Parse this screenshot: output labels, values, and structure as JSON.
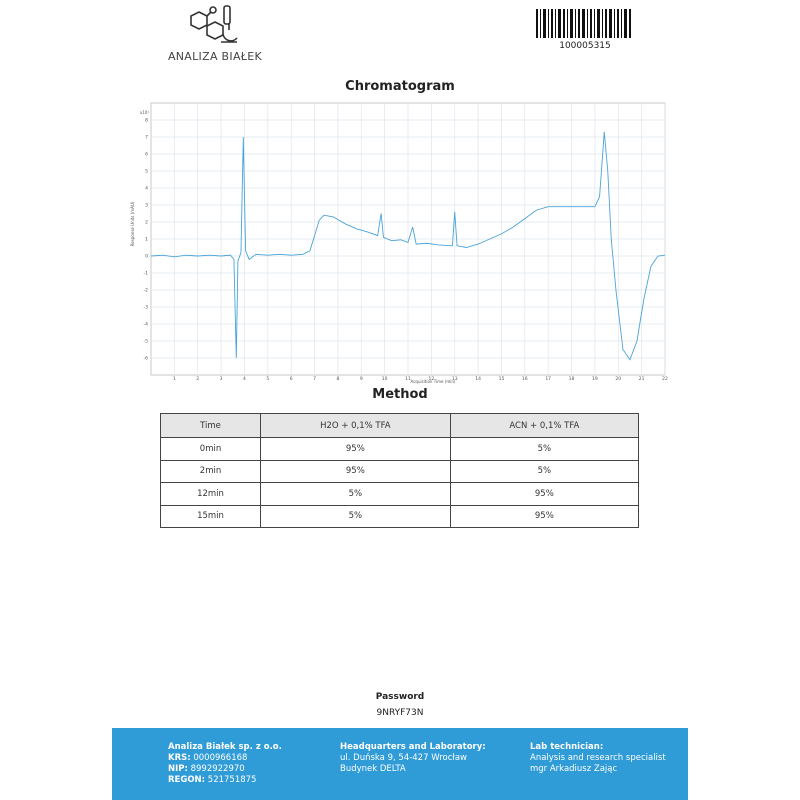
{
  "header": {
    "brand": "ANALIZA BIAŁEK",
    "barcode": "100005315"
  },
  "chart_data": {
    "type": "line",
    "title": "Chromatogram",
    "x_label": "Acquisition Time (min)",
    "y_label": "Response Units (mAU)",
    "y_scale_label": "x10¹",
    "x": [
      0,
      0.5,
      1,
      1.5,
      2,
      2.5,
      3,
      3.4,
      3.55,
      3.65,
      3.72,
      3.85,
      3.95,
      4.05,
      4.2,
      4.5,
      5,
      5.5,
      6,
      6.5,
      6.8,
      7.0,
      7.2,
      7.4,
      7.8,
      8.3,
      8.8,
      9.3,
      9.7,
      9.85,
      9.95,
      10.3,
      10.7,
      11.0,
      11.2,
      11.35,
      11.8,
      12.3,
      12.9,
      13.0,
      13.1,
      13.5,
      14,
      14.5,
      15,
      15.5,
      16,
      16.5,
      17,
      18,
      19,
      19.2,
      19.4,
      19.55,
      19.7,
      19.9,
      20.2,
      20.5,
      20.8,
      21.1,
      21.4,
      21.7,
      22
    ],
    "series": [
      {
        "color": "#4aa3d8",
        "values": [
          0,
          0.05,
          -0.05,
          0.05,
          0,
          0.05,
          0,
          0.05,
          -0.2,
          -6,
          -0.3,
          0.2,
          7,
          0.3,
          -0.2,
          0.1,
          0.05,
          0.1,
          0.05,
          0.1,
          0.3,
          1.2,
          2.1,
          2.4,
          2.3,
          1.9,
          1.6,
          1.4,
          1.2,
          2.5,
          1.1,
          0.9,
          0.95,
          0.8,
          1.7,
          0.7,
          0.75,
          0.65,
          0.6,
          2.6,
          0.6,
          0.5,
          0.7,
          1.0,
          1.3,
          1.7,
          2.2,
          2.7,
          2.9,
          2.9,
          2.9,
          3.5,
          7.3,
          5,
          1,
          -2,
          -5.5,
          -6.1,
          -5,
          -2.5,
          -0.6,
          0,
          0.05
        ]
      }
    ],
    "xlim": [
      0,
      22
    ],
    "ylim": [
      -7,
      9
    ],
    "xticks": [
      1,
      2,
      3,
      4,
      5,
      6,
      7,
      8,
      9,
      10,
      11,
      12,
      13,
      14,
      15,
      16,
      17,
      18,
      19,
      20,
      21,
      22
    ],
    "yticks": [
      -6,
      -5,
      -4,
      -3,
      -2,
      -1,
      0,
      1,
      2,
      3,
      4,
      5,
      6,
      7,
      8
    ],
    "grid": true
  },
  "method": {
    "title": "Method",
    "columns": [
      "Time",
      "H2O + 0,1% TFA",
      "ACN + 0,1% TFA"
    ],
    "rows": [
      [
        "0min",
        "95%",
        "5%"
      ],
      [
        "2min",
        "95%",
        "5%"
      ],
      [
        "12min",
        "5%",
        "95%"
      ],
      [
        "15min",
        "5%",
        "95%"
      ]
    ]
  },
  "password": {
    "label": "Password",
    "value": "9NRYF73N"
  },
  "footer": {
    "company": "Analiza Białek sp. z o.o.",
    "ids": [
      {
        "label": "KRS:",
        "value": "0000966168"
      },
      {
        "label": "NIP:",
        "value": "8992922970"
      },
      {
        "label": "REGON:",
        "value": "521751875"
      }
    ],
    "hq_title": "Headquarters and Laboratory:",
    "hq_lines": [
      "ul. Duńska 9, 54-427 Wrocław",
      "Budynek DELTA"
    ],
    "tech_title": "Lab technician:",
    "tech_lines": [
      "Analysis and research specialist",
      "mgr Arkadiusz Zając"
    ]
  }
}
